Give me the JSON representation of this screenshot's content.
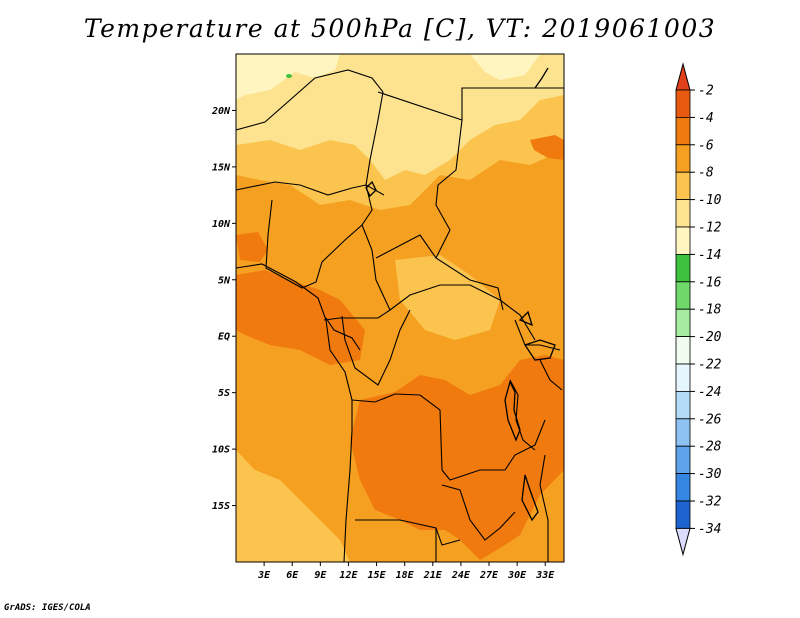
{
  "title": "Temperature at 500hPa [C], VT: 2019061003",
  "credit": "GrADS: IGES/COLA",
  "map": {
    "lon_range": [
      0,
      35
    ],
    "lat_range": [
      -20,
      25
    ],
    "lat_ticks": [
      {
        "value": 20,
        "label": "20N"
      },
      {
        "value": 15,
        "label": "15N"
      },
      {
        "value": 10,
        "label": "10N"
      },
      {
        "value": 5,
        "label": "5N"
      },
      {
        "value": 0,
        "label": "EQ"
      },
      {
        "value": -5,
        "label": "5S"
      },
      {
        "value": -10,
        "label": "10S"
      },
      {
        "value": -15,
        "label": "15S"
      }
    ],
    "lon_ticks": [
      {
        "value": 3,
        "label": "3E"
      },
      {
        "value": 6,
        "label": "6E"
      },
      {
        "value": 9,
        "label": "9E"
      },
      {
        "value": 12,
        "label": "12E"
      },
      {
        "value": 15,
        "label": "15E"
      },
      {
        "value": 18,
        "label": "18E"
      },
      {
        "value": 21,
        "label": "21E"
      },
      {
        "value": 24,
        "label": "24E"
      },
      {
        "value": 27,
        "label": "27E"
      },
      {
        "value": 30,
        "label": "30E"
      },
      {
        "value": 33,
        "label": "33E"
      }
    ]
  },
  "colorbar": {
    "levels": [
      {
        "label": "-2",
        "color": "#e85a10"
      },
      {
        "label": "-4",
        "color": "#f07a0e"
      },
      {
        "label": "-6",
        "color": "#f5a020"
      },
      {
        "label": "-8",
        "color": "#fbc44e"
      },
      {
        "label": "-10",
        "color": "#fde38f"
      },
      {
        "label": "-12",
        "color": "#fef5c0"
      },
      {
        "label": "-14",
        "color": "#3cc23c"
      },
      {
        "label": "-16",
        "color": "#6ed86a"
      },
      {
        "label": "-18",
        "color": "#a6eca0"
      },
      {
        "label": "-20",
        "color": "#d8f8d4"
      },
      {
        "label": "-22",
        "color": "#e6f6fd"
      },
      {
        "label": "-24",
        "color": "#b4dcf8"
      },
      {
        "label": "-26",
        "color": "#8ec2f2"
      },
      {
        "label": "-28",
        "color": "#5ea4ec"
      },
      {
        "label": "-30",
        "color": "#3586e2"
      },
      {
        "label": "-32",
        "color": "#1e64d0"
      },
      {
        "label": "-34",
        "color": "#0c44b4"
      }
    ],
    "top_color": "#e0401a",
    "segment_colors_bottom_to_top": [
      "#dcdcff",
      "#0c1c7a",
      "#0c44b4",
      "#1e64d0",
      "#3586e2",
      "#5ea4ec",
      "#8ec2f2",
      "#b4dcf8",
      "#e6f6fd",
      "#f0fcf0",
      "#a6eca0",
      "#6ed86a",
      "#3cc23c",
      "#fef5c0",
      "#fde38f",
      "#fbc44e",
      "#f5a020",
      "#f07a0e",
      "#e85a10"
    ]
  }
}
